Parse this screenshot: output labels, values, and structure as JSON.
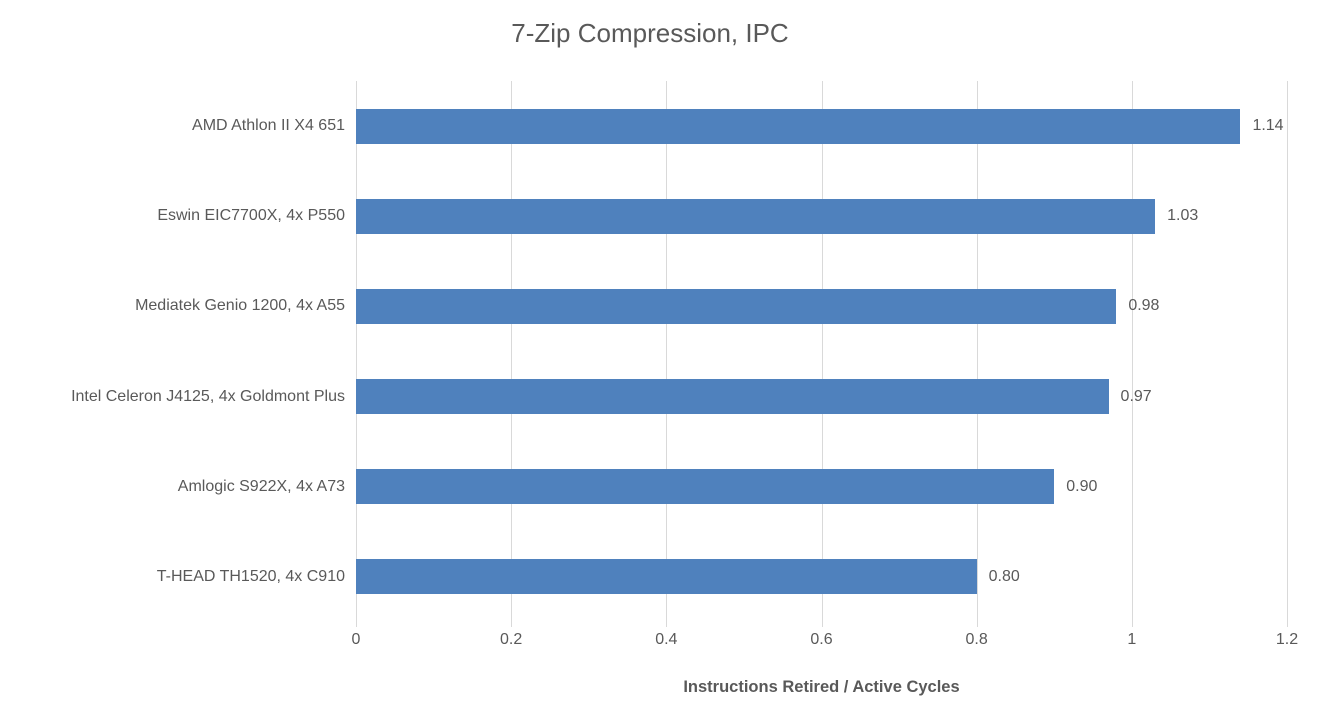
{
  "chart_data": {
    "type": "bar",
    "orientation": "horizontal",
    "title": "7-Zip Compression, IPC",
    "xlabel": "Instructions Retired / Active Cycles",
    "categories": [
      "AMD Athlon II X4 651",
      "Eswin EIC7700X, 4x P550",
      "Mediatek Genio 1200, 4x A55",
      "Intel Celeron J4125, 4x Goldmont Plus",
      "Amlogic S922X, 4x A73",
      "T-HEAD TH1520, 4x C910"
    ],
    "values": [
      1.14,
      1.03,
      0.98,
      0.97,
      0.9,
      0.8
    ],
    "value_labels": [
      "1.14",
      "1.03",
      "0.98",
      "0.97",
      "0.90",
      "0.80"
    ],
    "xlim": [
      0,
      1.2
    ],
    "xticks": [
      0,
      0.2,
      0.4,
      0.6,
      0.8,
      1,
      1.2
    ],
    "xtick_labels": [
      "0",
      "0.2",
      "0.4",
      "0.6",
      "0.8",
      "1",
      "1.2"
    ],
    "grid": true,
    "legend": false,
    "colors": {
      "bar": "#4f81bd",
      "gridline": "#d9d9d9",
      "text": "#595959",
      "background": "#ffffff"
    }
  }
}
